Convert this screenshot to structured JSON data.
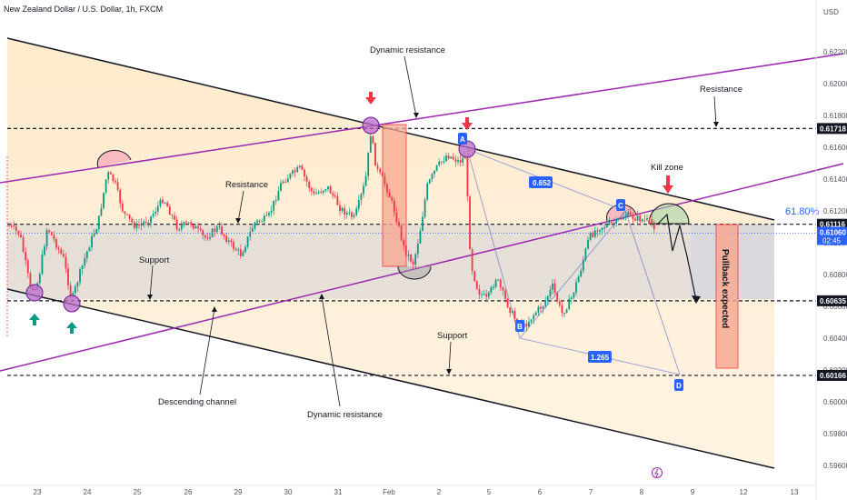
{
  "chart_data": {
    "type": "candlestick",
    "title": "New Zealand Dollar / U.S. Dollar, 1h, FXCM",
    "currency": "USD",
    "x_ticks": [
      "23",
      "24",
      "25",
      "26",
      "29",
      "30",
      "31",
      "Feb",
      "2",
      "5",
      "6",
      "7",
      "8",
      "9",
      "12",
      "13"
    ],
    "y_ticks": [
      0.622,
      0.62,
      0.618,
      0.616,
      0.614,
      0.612,
      0.61,
      0.608,
      0.606,
      0.604,
      0.602,
      0.6,
      0.598,
      0.596
    ],
    "ylim": [
      0.5955,
      0.623
    ],
    "price_levels": [
      {
        "value": 0.61718,
        "label": "0.61718",
        "color": "#131722"
      },
      {
        "value": 0.61116,
        "label": "0.61116",
        "color": "#131722"
      },
      {
        "value": 0.60635,
        "label": "0.60635",
        "color": "#131722"
      },
      {
        "value": 0.60166,
        "label": "0.60166",
        "color": "#131722"
      }
    ],
    "current_price": {
      "value": 0.6106,
      "label": "0.61060",
      "countdown": "02:45",
      "color": "#2962ff"
    },
    "annotations": {
      "title_dynamic_top": "Dynamic resistance",
      "dynamic_bottom": "Dynamic resistance",
      "resistance_right": "Resistance",
      "resistance_left": "Resistance",
      "support_left": "Support",
      "support_right": "Support",
      "descending_channel": "Descending channel",
      "kill_zone": "Kill zone",
      "pullback": "Pullback expected",
      "fib": "61.80%",
      "ratio1": "0.652",
      "ratio2": "1.265",
      "points": [
        "A",
        "B",
        "C",
        "D"
      ]
    },
    "colors": {
      "up": "#089981",
      "down": "#f23645",
      "channel": "#131722",
      "purple": "#9c27b0",
      "orange_zone": "#ffe0b2",
      "gray_zone": "#d1d4dc"
    }
  }
}
